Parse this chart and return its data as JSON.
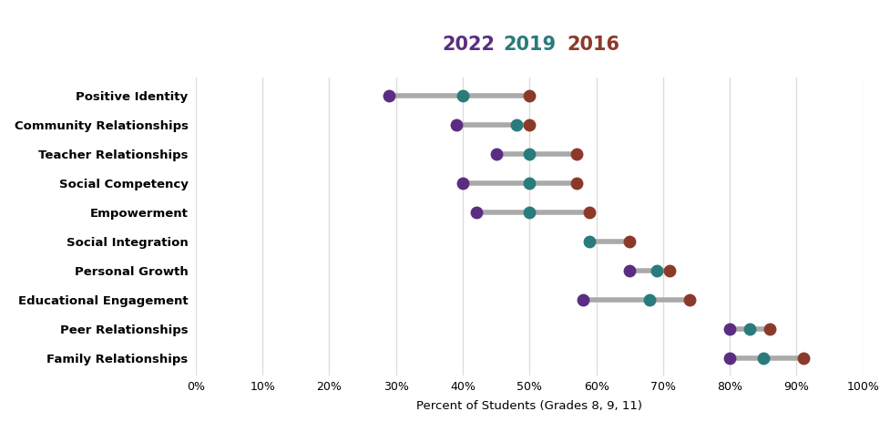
{
  "categories": [
    "Positive Identity",
    "Community Relationships",
    "Teacher Relationships",
    "Social Competency",
    "Empowerment",
    "Social Integration",
    "Personal Growth",
    "Educational Engagement",
    "Peer Relationships",
    "Family Relationships"
  ],
  "year_2022": [
    0.29,
    0.39,
    0.45,
    0.4,
    0.42,
    null,
    0.65,
    0.58,
    0.8,
    0.8
  ],
  "year_2019": [
    0.4,
    0.48,
    0.5,
    0.5,
    0.5,
    0.59,
    0.69,
    0.68,
    0.83,
    0.85
  ],
  "year_2016": [
    0.5,
    0.5,
    0.57,
    0.57,
    0.59,
    0.65,
    0.71,
    0.74,
    0.86,
    0.91
  ],
  "color_2022": "#5b2d82",
  "color_2019": "#2a7b7c",
  "color_2016": "#8b3a2a",
  "line_color": "#aaaaaa",
  "marker_size": 100,
  "xlabel": "Percent of Students (Grades 8, 9, 11)",
  "xlim": [
    0.0,
    1.0
  ],
  "xticks": [
    0.0,
    0.1,
    0.2,
    0.3,
    0.4,
    0.5,
    0.6,
    0.7,
    0.8,
    0.9,
    1.0
  ],
  "xticklabels": [
    "0%",
    "10%",
    "20%",
    "30%",
    "40%",
    "50%",
    "60%",
    "70%",
    "80%",
    "90%",
    "100%"
  ],
  "grid_color": "#dddddd",
  "bg_color": "#ffffff",
  "legend_fontsize": 15,
  "label_fontsize": 9.5,
  "tick_fontsize": 9
}
